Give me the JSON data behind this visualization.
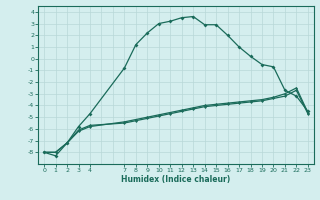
{
  "line1_x": [
    0,
    1,
    2,
    3,
    4,
    7,
    8,
    9,
    10,
    11,
    12,
    13,
    14,
    15,
    16,
    17,
    18,
    19,
    20,
    21,
    22,
    23
  ],
  "line1_y": [
    -8.0,
    -8.3,
    -7.2,
    -5.8,
    -4.7,
    -0.8,
    1.2,
    2.2,
    3.0,
    3.2,
    3.5,
    3.6,
    2.9,
    2.9,
    2.0,
    1.0,
    0.2,
    -0.5,
    -0.7,
    -2.7,
    -3.2,
    -4.5
  ],
  "line2_x": [
    0,
    1,
    2,
    3,
    4,
    7,
    8,
    9,
    10,
    11,
    12,
    13,
    14,
    15,
    16,
    17,
    18,
    19,
    20,
    21,
    22,
    23
  ],
  "line2_y": [
    -8.0,
    -8.0,
    -7.2,
    -6.2,
    -5.8,
    -5.4,
    -5.2,
    -5.0,
    -4.8,
    -4.6,
    -4.4,
    -4.2,
    -4.0,
    -3.9,
    -3.8,
    -3.7,
    -3.6,
    -3.5,
    -3.3,
    -3.0,
    -2.5,
    -4.6
  ],
  "line3_x": [
    0,
    1,
    2,
    3,
    4,
    7,
    8,
    9,
    10,
    11,
    12,
    13,
    14,
    15,
    16,
    17,
    18,
    19,
    20,
    21,
    22,
    23
  ],
  "line3_y": [
    -8.0,
    -8.0,
    -7.2,
    -6.1,
    -5.7,
    -5.5,
    -5.3,
    -5.1,
    -4.9,
    -4.7,
    -4.5,
    -4.3,
    -4.1,
    -4.0,
    -3.9,
    -3.8,
    -3.7,
    -3.6,
    -3.4,
    -3.2,
    -2.7,
    -4.7
  ],
  "color": "#1a6b5a",
  "bg_color": "#d4eeee",
  "grid_color": "#b8d8d8",
  "xlabel": "Humidex (Indice chaleur)",
  "xlim": [
    -0.5,
    23.5
  ],
  "ylim": [
    -9,
    4.5
  ],
  "yticks": [
    4,
    3,
    2,
    1,
    0,
    -1,
    -2,
    -3,
    -4,
    -5,
    -6,
    -7,
    -8
  ],
  "xticks": [
    0,
    1,
    2,
    3,
    4,
    7,
    8,
    9,
    10,
    11,
    12,
    13,
    14,
    15,
    16,
    17,
    18,
    19,
    20,
    21,
    22,
    23
  ]
}
